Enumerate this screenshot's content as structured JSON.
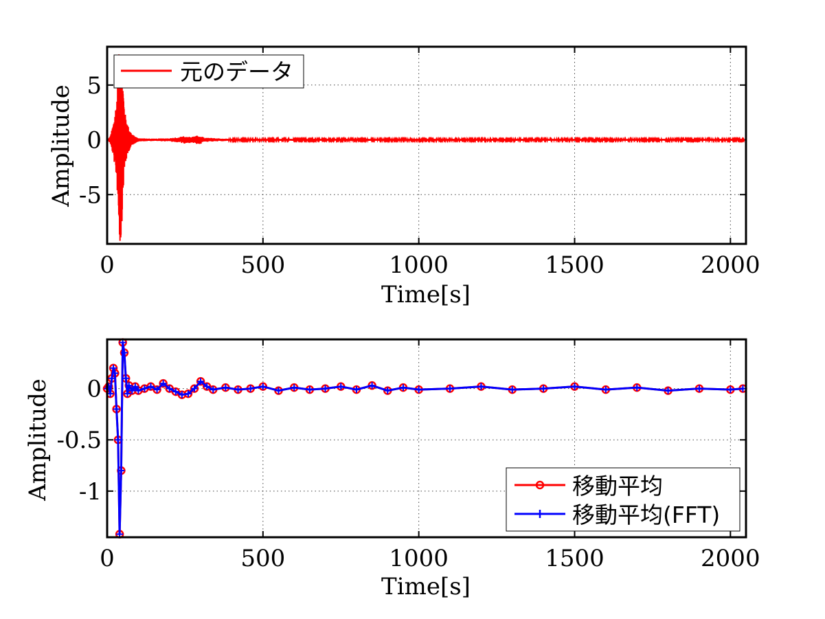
{
  "chart_data": [
    {
      "type": "line",
      "xlabel": "Time[s]",
      "ylabel": "Amplitude",
      "xlim": [
        0,
        2050
      ],
      "ylim": [
        -9.5,
        8.5
      ],
      "xticks": [
        0,
        500,
        1000,
        1500,
        2000
      ],
      "yticks": [
        -5,
        0,
        5
      ],
      "xtick_labels": [
        "0",
        "500",
        "1000",
        "1500",
        "2000"
      ],
      "ytick_labels": [
        "-5",
        "0",
        "5"
      ],
      "grid": true,
      "legend_position": "top-left",
      "series": [
        {
          "name": "元のデータ",
          "color": "#ff0000",
          "marker": "none",
          "envelope": {
            "x": [
              0,
              10,
              20,
              25,
              30,
              35,
              40,
              45,
              50,
              55,
              60,
              70,
              80,
              90,
              100,
              150,
              200,
              240,
              250,
              260,
              280,
              290,
              300,
              310,
              400,
              1000,
              2050
            ],
            "amp": [
              0,
              0.3,
              1.5,
              2.5,
              3.5,
              6.0,
              9.5,
              9.5,
              5.5,
              3.0,
              2.0,
              1.0,
              0.5,
              0.3,
              0.15,
              0.1,
              0.15,
              0.3,
              0.35,
              0.3,
              0.3,
              0.4,
              0.4,
              0.2,
              0.08,
              0.08,
              0.08
            ]
          }
        }
      ]
    },
    {
      "type": "line",
      "xlabel": "Time[s]",
      "ylabel": "Amplitude",
      "xlim": [
        0,
        2050
      ],
      "ylim": [
        -1.45,
        0.48
      ],
      "xticks": [
        0,
        500,
        1000,
        1500,
        2000
      ],
      "yticks": [
        -1,
        -0.5,
        0
      ],
      "xtick_labels": [
        "0",
        "500",
        "1000",
        "1500",
        "2000"
      ],
      "ytick_labels": [
        "-1",
        "-0.5",
        "0"
      ],
      "grid": true,
      "legend_position": "bottom-right",
      "series": [
        {
          "name": "移動平均",
          "color": "#ff0000",
          "marker": "circle",
          "x": [
            0,
            5,
            10,
            15,
            20,
            25,
            30,
            35,
            40,
            45,
            50,
            55,
            60,
            65,
            70,
            80,
            90,
            100,
            120,
            140,
            160,
            180,
            200,
            220,
            240,
            260,
            280,
            300,
            320,
            340,
            380,
            420,
            460,
            500,
            550,
            600,
            650,
            700,
            750,
            800,
            850,
            900,
            950,
            1000,
            1100,
            1200,
            1300,
            1400,
            1500,
            1600,
            1700,
            1800,
            1900,
            2000,
            2040
          ],
          "y": [
            0,
            0.02,
            -0.05,
            0.1,
            0.2,
            0.15,
            -0.2,
            -0.5,
            -1.42,
            -0.8,
            0.45,
            0.35,
            0.1,
            -0.05,
            0.03,
            -0.02,
            0.02,
            -0.02,
            0.0,
            0.02,
            -0.01,
            0.05,
            0.0,
            -0.03,
            -0.06,
            -0.05,
            0.0,
            0.07,
            0.02,
            -0.01,
            0.01,
            -0.01,
            0.0,
            0.02,
            -0.02,
            0.01,
            -0.01,
            0.0,
            0.02,
            -0.01,
            0.03,
            -0.02,
            0.01,
            -0.01,
            0.0,
            0.02,
            -0.01,
            0.0,
            0.02,
            -0.01,
            0.01,
            -0.02,
            0.0,
            -0.01,
            0.0
          ]
        },
        {
          "name": "移動平均(FFT)",
          "color": "#0000ff",
          "marker": "plus",
          "x": [
            0,
            5,
            10,
            15,
            20,
            25,
            30,
            35,
            40,
            45,
            50,
            55,
            60,
            65,
            70,
            80,
            90,
            100,
            120,
            140,
            160,
            180,
            200,
            220,
            240,
            260,
            280,
            300,
            320,
            340,
            380,
            420,
            460,
            500,
            550,
            600,
            650,
            700,
            750,
            800,
            850,
            900,
            950,
            1000,
            1100,
            1200,
            1300,
            1400,
            1500,
            1600,
            1700,
            1800,
            1900,
            2000,
            2040
          ],
          "y": [
            0,
            0.02,
            -0.05,
            0.1,
            0.2,
            0.15,
            -0.2,
            -0.5,
            -1.42,
            -0.8,
            0.45,
            0.35,
            0.1,
            -0.05,
            0.03,
            -0.02,
            0.02,
            -0.02,
            0.0,
            0.02,
            -0.01,
            0.05,
            0.0,
            -0.03,
            -0.06,
            -0.05,
            0.0,
            0.07,
            0.02,
            -0.01,
            0.01,
            -0.01,
            0.0,
            0.02,
            -0.02,
            0.01,
            -0.01,
            0.0,
            0.02,
            -0.01,
            0.03,
            -0.02,
            0.01,
            -0.01,
            0.0,
            0.02,
            -0.01,
            0.0,
            0.02,
            -0.01,
            0.01,
            -0.02,
            0.0,
            -0.01,
            0.0
          ]
        }
      ]
    }
  ]
}
